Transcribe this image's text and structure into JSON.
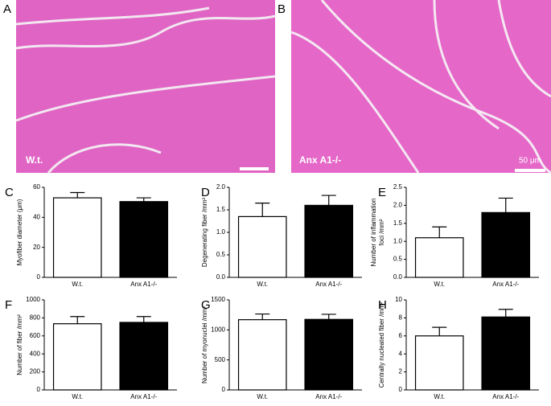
{
  "panels": [
    {
      "letter": "A",
      "label": "W.t."
    },
    {
      "letter": "B",
      "label": "Anx A1-/-",
      "scale": "50 μm"
    }
  ],
  "chart_data": [
    {
      "type": "bar",
      "letter": "C",
      "ylabel": [
        "Myofiber diameter (μm)"
      ],
      "categories": [
        "W.t.",
        "Anx A1-/-"
      ],
      "values": [
        53,
        50.5
      ],
      "errors": [
        3.5,
        2.5
      ],
      "colors": [
        "#ffffff",
        "#000000"
      ],
      "ylim": [
        0,
        60
      ],
      "yticks": [
        0,
        20,
        40,
        60
      ]
    },
    {
      "type": "bar",
      "letter": "D",
      "ylabel": [
        "Degenerating fiber /mm²"
      ],
      "categories": [
        "W.t.",
        "Anx A1-/-"
      ],
      "values": [
        1.35,
        1.6
      ],
      "errors": [
        0.3,
        0.22
      ],
      "colors": [
        "#ffffff",
        "#000000"
      ],
      "ylim": [
        0,
        2
      ],
      "yticks": [
        {
          "value": 0,
          "label": "0.0"
        },
        0.5,
        {
          "value": 1,
          "label": "1.0"
        },
        1.5,
        {
          "value": 2,
          "label": "2.0"
        }
      ]
    },
    {
      "type": "bar",
      "letter": "E",
      "ylabel": [
        "Number of inflammation",
        "foci /mm²"
      ],
      "categories": [
        "W.t.",
        "Anx A1-/-"
      ],
      "values": [
        1.1,
        1.8
      ],
      "errors": [
        0.3,
        0.4
      ],
      "colors": [
        "#ffffff",
        "#000000"
      ],
      "ylim": [
        0,
        2.5
      ],
      "yticks": [
        {
          "value": 0,
          "label": "0.0"
        },
        0.5,
        {
          "value": 1,
          "label": "1.0"
        },
        1.5,
        {
          "value": 2,
          "label": "2.0"
        },
        2.5
      ]
    },
    {
      "type": "bar",
      "letter": "F",
      "ylabel": [
        "Number of fiber /mm²"
      ],
      "categories": [
        "W.t.",
        "Anx A1-/-"
      ],
      "values": [
        735,
        750
      ],
      "errors": [
        80,
        65
      ],
      "colors": [
        "#ffffff",
        "#000000"
      ],
      "ylim": [
        0,
        1000
      ],
      "yticks": [
        0,
        200,
        400,
        600,
        800,
        1000
      ]
    },
    {
      "type": "bar",
      "letter": "G",
      "ylabel": [
        "Number of myonuclei /mm²"
      ],
      "categories": [
        "W.t.",
        "Anx A1-/-"
      ],
      "values": [
        1170,
        1175
      ],
      "errors": [
        95,
        85
      ],
      "colors": [
        "#ffffff",
        "#000000"
      ],
      "ylim": [
        0,
        1500
      ],
      "yticks": [
        0,
        500,
        1000,
        1500
      ]
    },
    {
      "type": "bar",
      "letter": "H",
      "ylabel": [
        "Centrally nucleated fiber /mm²"
      ],
      "categories": [
        "W.t.",
        "Anx A1-/-"
      ],
      "values": [
        6,
        8.1
      ],
      "errors": [
        0.95,
        0.85
      ],
      "colors": [
        "#ffffff",
        "#000000"
      ],
      "ylim": [
        0,
        10
      ],
      "yticks": [
        0,
        2,
        4,
        6,
        8,
        10
      ]
    }
  ]
}
